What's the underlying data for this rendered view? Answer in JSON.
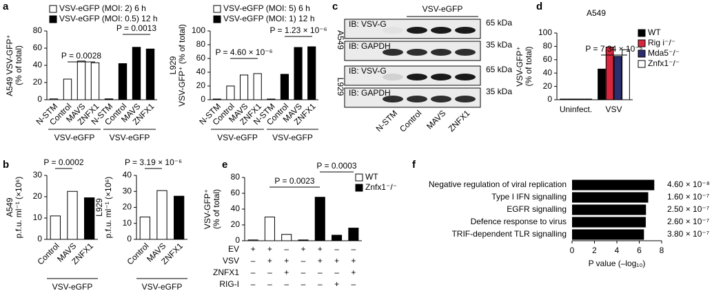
{
  "chart_data": [
    {
      "type": "bar",
      "panel": "a",
      "ylabel": [
        "A549 VSV-GFP⁺",
        "(% of total)"
      ],
      "categories": [
        "N-STM",
        "Control",
        "MAVS",
        "ZNFX1",
        "N-STM",
        "Control",
        "MAVS",
        "ZNFX1"
      ],
      "series": [
        {
          "name": "VSV-eGFP (MOI: 2) 6 h",
          "color": "#ffffff",
          "values": [
            1,
            24,
            45,
            43,
            null,
            null,
            null,
            null
          ]
        },
        {
          "name": "VSV-eGFP (MOI: 0.5) 12 h",
          "color": "#000000",
          "values": [
            null,
            null,
            null,
            null,
            1,
            42,
            61,
            59
          ]
        }
      ],
      "ylim": [
        0,
        80
      ],
      "yticks": [
        0,
        20,
        40,
        60,
        80
      ],
      "annotations": [
        "P = 0.0028",
        "P = 0.0013"
      ],
      "group_labels": [
        "VSV-eGFP",
        "VSV-eGFP"
      ]
    },
    {
      "type": "bar",
      "ylabel": [
        "L929",
        "VSV-GFP⁺ (% of total)"
      ],
      "categories": [
        "N-STM",
        "Control",
        "MAVS",
        "ZNFX1",
        "N-STM",
        "Control",
        "MAVS",
        "ZNFX1"
      ],
      "series": [
        {
          "name": "VSV-eGFP (MOI: 5) 6 h",
          "color": "#ffffff",
          "values": [
            1,
            20,
            36,
            38,
            null,
            null,
            null,
            null
          ]
        },
        {
          "name": "VSV-eGFP (MOI: 1) 12 h",
          "color": "#000000",
          "values": [
            null,
            null,
            null,
            null,
            1,
            37,
            76,
            77
          ]
        }
      ],
      "ylim": [
        0,
        100
      ],
      "yticks": [
        0,
        20,
        40,
        60,
        80,
        100
      ],
      "annotations": [
        "P = 4.60 × 10⁻⁶",
        "P = 1.23 × 10⁻⁶"
      ],
      "group_labels": [
        "VSV-eGFP",
        "VSV-eGFP"
      ]
    },
    {
      "type": "bar",
      "panel": "d",
      "title": "A549",
      "ylabel": [
        "VSV-GFP⁺",
        "(% of total)"
      ],
      "categories": [
        "Uninfect.",
        "VSV"
      ],
      "series": [
        {
          "name": "WT",
          "color": "#000000",
          "values": [
            1,
            46
          ]
        },
        {
          "name": "Rig i⁻/⁻",
          "color": "#d7263d",
          "values": [
            1,
            79
          ]
        },
        {
          "name": "Mda5⁻/⁻",
          "color": "#2b2d6e",
          "values": [
            1,
            65
          ]
        },
        {
          "name": "Znfx1⁻/⁻",
          "color": "#ffffff",
          "values": [
            1,
            75
          ]
        }
      ],
      "ylim": [
        0,
        100
      ],
      "yticks": [
        0,
        20,
        40,
        60,
        80,
        100
      ],
      "annotations": [
        "P = 7.34 × 10⁻⁵"
      ]
    },
    {
      "type": "bar",
      "panel": "b",
      "ylabel": [
        "A549",
        "p.f.u. ml⁻¹ (×10⁶)"
      ],
      "categories": [
        "Control",
        "MAVS",
        "ZNFX1"
      ],
      "values": [
        11,
        22.5,
        19.5
      ],
      "colors": [
        "#ffffff",
        "#ffffff",
        "#000000"
      ],
      "ylim": [
        0,
        30
      ],
      "yticks": [
        0,
        10,
        20,
        30
      ],
      "annotations": [
        "P = 0.0002"
      ],
      "group_labels": [
        "VSV-eGFP"
      ]
    },
    {
      "type": "bar",
      "ylabel": [
        "L929",
        "p.f.u. ml⁻¹ (×10⁶)"
      ],
      "categories": [
        "Control",
        "MAVS",
        "ZNFX1"
      ],
      "values": [
        14,
        30.5,
        27
      ],
      "colors": [
        "#ffffff",
        "#ffffff",
        "#000000"
      ],
      "ylim": [
        0,
        40
      ],
      "yticks": [
        0,
        10,
        20,
        30,
        40
      ],
      "annotations": [
        "P = 3.19 × 10⁻⁶"
      ],
      "group_labels": [
        "VSV-eGFP"
      ]
    },
    {
      "type": "bar",
      "panel": "e",
      "ylabel": [
        "VSV-GFP⁺",
        "(% of total)"
      ],
      "categories": [
        null,
        null,
        null,
        null,
        null,
        null,
        null
      ],
      "series": [
        {
          "name": "WT",
          "color": "#ffffff",
          "values": [
            1,
            30,
            8,
            null,
            null,
            null,
            null
          ]
        },
        {
          "name": "Znfx1⁻/⁻",
          "color": "#000000",
          "values": [
            null,
            null,
            null,
            1,
            55,
            7,
            16
          ]
        }
      ],
      "ylim": [
        0,
        80
      ],
      "yticks": [
        0,
        20,
        40,
        60,
        80
      ],
      "annotations": [
        "P = 0.0023",
        "P = 0.0003"
      ],
      "conditions": [
        {
          "name": "EV",
          "marks": [
            "+",
            "+",
            "–",
            "+",
            "+",
            "–",
            "–"
          ]
        },
        {
          "name": "VSV",
          "marks": [
            "–",
            "+",
            "+",
            "–",
            "+",
            "+",
            "+"
          ]
        },
        {
          "name": "ZNFX1",
          "marks": [
            "–",
            "–",
            "+",
            "–",
            "–",
            "–",
            "+"
          ]
        },
        {
          "name": "RIG-I",
          "marks": [
            "–",
            "–",
            "–",
            "–",
            "–",
            "+",
            "–"
          ]
        }
      ]
    },
    {
      "type": "hbar",
      "panel": "f",
      "categories": [
        "Negative regulation of viral replication",
        "Type I IFN signalling",
        "EGFR signalling",
        "Defence response to virus",
        "TRIF-dependent TLR signalling"
      ],
      "values": [
        7.34,
        6.8,
        6.6,
        6.58,
        6.42
      ],
      "annotations": [
        "4.60 × 10⁻⁸",
        "1.60 × 10⁻⁷",
        "2.50 × 10⁻⁷",
        "2.60 × 10⁻⁷",
        "3.80 × 10⁻⁷"
      ],
      "color": "#000000",
      "xlim": [
        0,
        8
      ],
      "xticks": [
        0,
        2,
        4,
        6,
        8
      ],
      "xlabel": "P value (–log₁₀)"
    }
  ],
  "blot": {
    "panel": "c",
    "treatment": "VSV-eGFP",
    "cell_lines": [
      "A549",
      "L929"
    ],
    "rows": [
      {
        "label": "IB: VSV-G",
        "size": "65 kDa"
      },
      {
        "label": "IB: GAPDH",
        "size": "35 kDa"
      },
      {
        "label": "IB: VSV-G",
        "size": "65 kDa"
      },
      {
        "label": "IB: GAPDH",
        "size": "35 kDa"
      }
    ],
    "lanes": [
      "N-STM",
      "Control",
      "MAVS",
      "ZNFX1"
    ]
  }
}
